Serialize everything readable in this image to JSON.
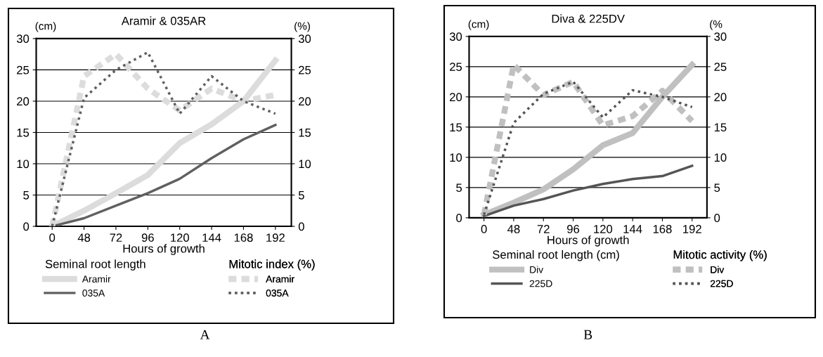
{
  "chart_data": [
    {
      "type": "line",
      "title": "Aramir & 035AR",
      "xlabel": "Hours of growth",
      "ylabel": "(cm)",
      "y2label": "(%)",
      "categories": [
        "0",
        "48",
        "72",
        "96",
        "120",
        "144",
        "168",
        "192"
      ],
      "series": [
        {
          "name": "Aramir",
          "color": "#dcdcdc",
          "line_style": "solid",
          "axis": "y",
          "values": [
            0,
            2.5,
            5.3,
            8.2,
            13.3,
            16.3,
            20,
            26.5
          ]
        },
        {
          "name": "035A",
          "color": "#606060",
          "line_style": "solid",
          "axis": "y",
          "values": [
            0,
            1.3,
            3.3,
            5.3,
            7.6,
            10.9,
            13.9,
            16.2
          ]
        },
        {
          "name": "Aramir",
          "color": "#dcdcdc",
          "line_style": "dashed",
          "axis": "y2",
          "values": [
            0,
            24,
            27.5,
            22,
            18.5,
            22,
            20,
            21
          ]
        },
        {
          "name": "035A",
          "color": "#606060",
          "line_style": "dotted",
          "axis": "y2",
          "values": [
            0,
            20.5,
            25,
            27.8,
            18,
            24,
            20,
            18
          ]
        }
      ],
      "ylim": [
        0,
        30
      ],
      "yticks": [
        0,
        5,
        10,
        15,
        20,
        25,
        30
      ],
      "y2lim": [
        0,
        30
      ],
      "y2ticks": [
        0,
        5,
        10,
        15,
        20,
        25,
        30
      ],
      "grid": "y",
      "legend": "bottom",
      "annotations": [
        "Seminal root length",
        "Mitotic index (%)",
        "A"
      ]
    },
    {
      "type": "line",
      "title": "Diva & 225DV",
      "xlabel": "Hours of growth",
      "ylabel": "(cm)",
      "y2label": "(%",
      "categories": [
        "0",
        "48",
        "72",
        "96",
        "120",
        "144",
        "168",
        "192"
      ],
      "series": [
        {
          "name": "Div",
          "color": "#c0c0c0",
          "line_style": "solid",
          "axis": "y",
          "values": [
            0.5,
            2.5,
            4.7,
            8,
            12,
            14,
            20,
            25.3
          ]
        },
        {
          "name": "225D",
          "color": "#555555",
          "line_style": "solid",
          "axis": "y",
          "values": [
            0.3,
            2,
            3.1,
            4.5,
            5.6,
            6.4,
            6.9,
            8.6
          ]
        },
        {
          "name": "Div",
          "color": "#c0c0c0",
          "line_style": "dashed",
          "axis": "y2",
          "values": [
            0.5,
            25.3,
            20.3,
            22.5,
            15.3,
            16.8,
            21,
            16
          ]
        },
        {
          "name": "225D",
          "color": "#555555",
          "line_style": "dotted",
          "axis": "y2",
          "values": [
            0.5,
            15.7,
            20.5,
            22.5,
            16.6,
            21.1,
            20,
            18.3
          ]
        }
      ],
      "ylim": [
        0,
        30
      ],
      "yticks": [
        0,
        5,
        10,
        15,
        20,
        25,
        30
      ],
      "y2lim": [
        0,
        30
      ],
      "y2ticks": [
        0,
        5,
        10,
        15,
        20,
        25,
        30
      ],
      "grid": "y",
      "legend": "bottom",
      "annotations": [
        "Seminal root length (cm)",
        "Mitotic activity (%)",
        "B"
      ]
    }
  ]
}
